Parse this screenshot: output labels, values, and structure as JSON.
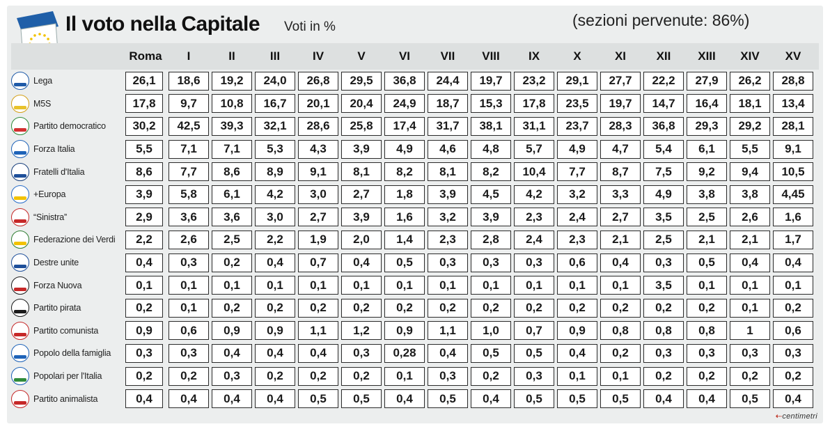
{
  "header": {
    "title": "Il voto nella Capitale",
    "subtitle": "Voti in %",
    "sections": "(sezioni pervenute: 86%)"
  },
  "footer": {
    "credit": "centimetri"
  },
  "colors": {
    "background": "#eceeee",
    "header_band": "#dde0e0",
    "cell_border": "#2a2a2a",
    "flag_blue": "#1f5fa8",
    "flag_stars": "#f2c200"
  },
  "logos": [
    {
      "label": "L",
      "color": "#1e5aa8",
      "stripe": "#1e5aa8"
    },
    {
      "label": "M5S",
      "color": "#d4a017",
      "stripe": "#e8c22a"
    },
    {
      "label": "PD",
      "color": "#2e8b3a",
      "stripe": "#d32f2f"
    },
    {
      "label": "FI",
      "color": "#1e63b8",
      "stripe": "#1e63b8"
    },
    {
      "label": "FdI",
      "color": "#153d7a",
      "stripe": "#1e4f9a"
    },
    {
      "label": "+E",
      "color": "#2a6fc9",
      "stripe": "#f2c200"
    },
    {
      "label": "S",
      "color": "#c62828",
      "stripe": "#c62828"
    },
    {
      "label": "V",
      "color": "#2e7d32",
      "stripe": "#f2c200"
    },
    {
      "label": "DU",
      "color": "#1e4f9a",
      "stripe": "#1e4f9a"
    },
    {
      "label": "FN",
      "color": "#1a1a1a",
      "stripe": "#c62828"
    },
    {
      "label": "PP",
      "color": "#1a1a1a",
      "stripe": "#1a1a1a"
    },
    {
      "label": "PC",
      "color": "#c62828",
      "stripe": "#c62828"
    },
    {
      "label": "PF",
      "color": "#1e63b8",
      "stripe": "#1e63b8"
    },
    {
      "label": "PI",
      "color": "#1e63b8",
      "stripe": "#2e8b3a"
    },
    {
      "label": "PA",
      "color": "#c62828",
      "stripe": "#c62828"
    }
  ],
  "chart_data": {
    "type": "table",
    "title": "Il voto nella Capitale",
    "subtitle": "Voti in %",
    "columns": [
      "Roma",
      "I",
      "II",
      "III",
      "IV",
      "V",
      "VI",
      "VII",
      "VIII",
      "IX",
      "X",
      "XI",
      "XII",
      "XIII",
      "XIV",
      "XV"
    ],
    "rows": [
      {
        "party": "Lega",
        "values": [
          "26,1",
          "18,6",
          "19,2",
          "24,0",
          "26,8",
          "29,5",
          "36,8",
          "24,4",
          "19,7",
          "23,2",
          "29,1",
          "27,7",
          "22,2",
          "27,9",
          "26,2",
          "28,8"
        ]
      },
      {
        "party": "M5S",
        "values": [
          "17,8",
          "9,7",
          "10,8",
          "16,7",
          "20,1",
          "20,4",
          "24,9",
          "18,7",
          "15,3",
          "17,8",
          "23,5",
          "19,7",
          "14,7",
          "16,4",
          "18,1",
          "13,4"
        ]
      },
      {
        "party": "Partito democratico",
        "values": [
          "30,2",
          "42,5",
          "39,3",
          "32,1",
          "28,6",
          "25,8",
          "17,4",
          "31,7",
          "38,1",
          "31,1",
          "23,7",
          "28,3",
          "36,8",
          "29,3",
          "29,2",
          "28,1"
        ]
      },
      {
        "party": "Forza Italia",
        "values": [
          "5,5",
          "7,1",
          "7,1",
          "5,3",
          "4,3",
          "3,9",
          "4,9",
          "4,6",
          "4,8",
          "5,7",
          "4,9",
          "4,7",
          "5,4",
          "6,1",
          "5,5",
          "9,1"
        ]
      },
      {
        "party": "Fratelli d'Italia",
        "values": [
          "8,6",
          "7,7",
          "8,6",
          "8,9",
          "9,1",
          "8,1",
          "8,2",
          "8,1",
          "8,2",
          "10,4",
          "7,7",
          "8,7",
          "7,5",
          "9,2",
          "9,4",
          "10,5"
        ]
      },
      {
        "party": "+Europa",
        "values": [
          "3,9",
          "5,8",
          "6,1",
          "4,2",
          "3,0",
          "2,7",
          "1,8",
          "3,9",
          "4,5",
          "4,2",
          "3,2",
          "3,3",
          "4,9",
          "3,8",
          "3,8",
          "4,45"
        ]
      },
      {
        "party": "“Sinistra”",
        "values": [
          "2,9",
          "3,6",
          "3,6",
          "3,0",
          "2,7",
          "3,9",
          "1,6",
          "3,2",
          "3,9",
          "2,3",
          "2,4",
          "2,7",
          "3,5",
          "2,5",
          "2,6",
          "1,6"
        ]
      },
      {
        "party": "Federazione dei Verdi",
        "values": [
          "2,2",
          "2,6",
          "2,5",
          "2,2",
          "1,9",
          "2,0",
          "1,4",
          "2,3",
          "2,8",
          "2,4",
          "2,3",
          "2,1",
          "2,5",
          "2,1",
          "2,1",
          "1,7"
        ]
      },
      {
        "party": "Destre unite",
        "values": [
          "0,4",
          "0,3",
          "0,2",
          "0,4",
          "0,7",
          "0,4",
          "0,5",
          "0,3",
          "0,3",
          "0,3",
          "0,6",
          "0,4",
          "0,3",
          "0,5",
          "0,4",
          "0,4"
        ]
      },
      {
        "party": "Forza Nuova",
        "values": [
          "0,1",
          "0,1",
          "0,1",
          "0,1",
          "0,1",
          "0,1",
          "0,1",
          "0,1",
          "0,1",
          "0,1",
          "0,1",
          "0,1",
          "3,5",
          "0,1",
          "0,1",
          "0,1"
        ]
      },
      {
        "party": "Partito pirata",
        "values": [
          "0,2",
          "0,1",
          "0,2",
          "0,2",
          "0,2",
          "0,2",
          "0,2",
          "0,2",
          "0,2",
          "0,2",
          "0,2",
          "0,2",
          "0,2",
          "0,2",
          "0,1",
          "0,2"
        ]
      },
      {
        "party": "Partito comunista",
        "values": [
          "0,9",
          "0,6",
          "0,9",
          "0,9",
          "1,1",
          "1,2",
          "0,9",
          "1,1",
          "1,0",
          "0,7",
          "0,9",
          "0,8",
          "0,8",
          "0,8",
          "1",
          "0,6"
        ]
      },
      {
        "party": "Popolo della famiglia",
        "values": [
          "0,3",
          "0,3",
          "0,4",
          "0,4",
          "0,4",
          "0,3",
          "0,28",
          "0,4",
          "0,5",
          "0,5",
          "0,4",
          "0,2",
          "0,3",
          "0,3",
          "0,3",
          "0,3"
        ]
      },
      {
        "party": "Popolari per l'Italia",
        "values": [
          "0,2",
          "0,2",
          "0,3",
          "0,2",
          "0,2",
          "0,2",
          "0,1",
          "0,3",
          "0,2",
          "0,3",
          "0,1",
          "0,1",
          "0,2",
          "0,2",
          "0,2",
          "0,2"
        ]
      },
      {
        "party": "Partito animalista",
        "values": [
          "0,4",
          "0,4",
          "0,4",
          "0,4",
          "0,5",
          "0,5",
          "0,4",
          "0,5",
          "0,4",
          "0,5",
          "0,5",
          "0,5",
          "0,4",
          "0,4",
          "0,5",
          "0,4"
        ]
      }
    ]
  }
}
